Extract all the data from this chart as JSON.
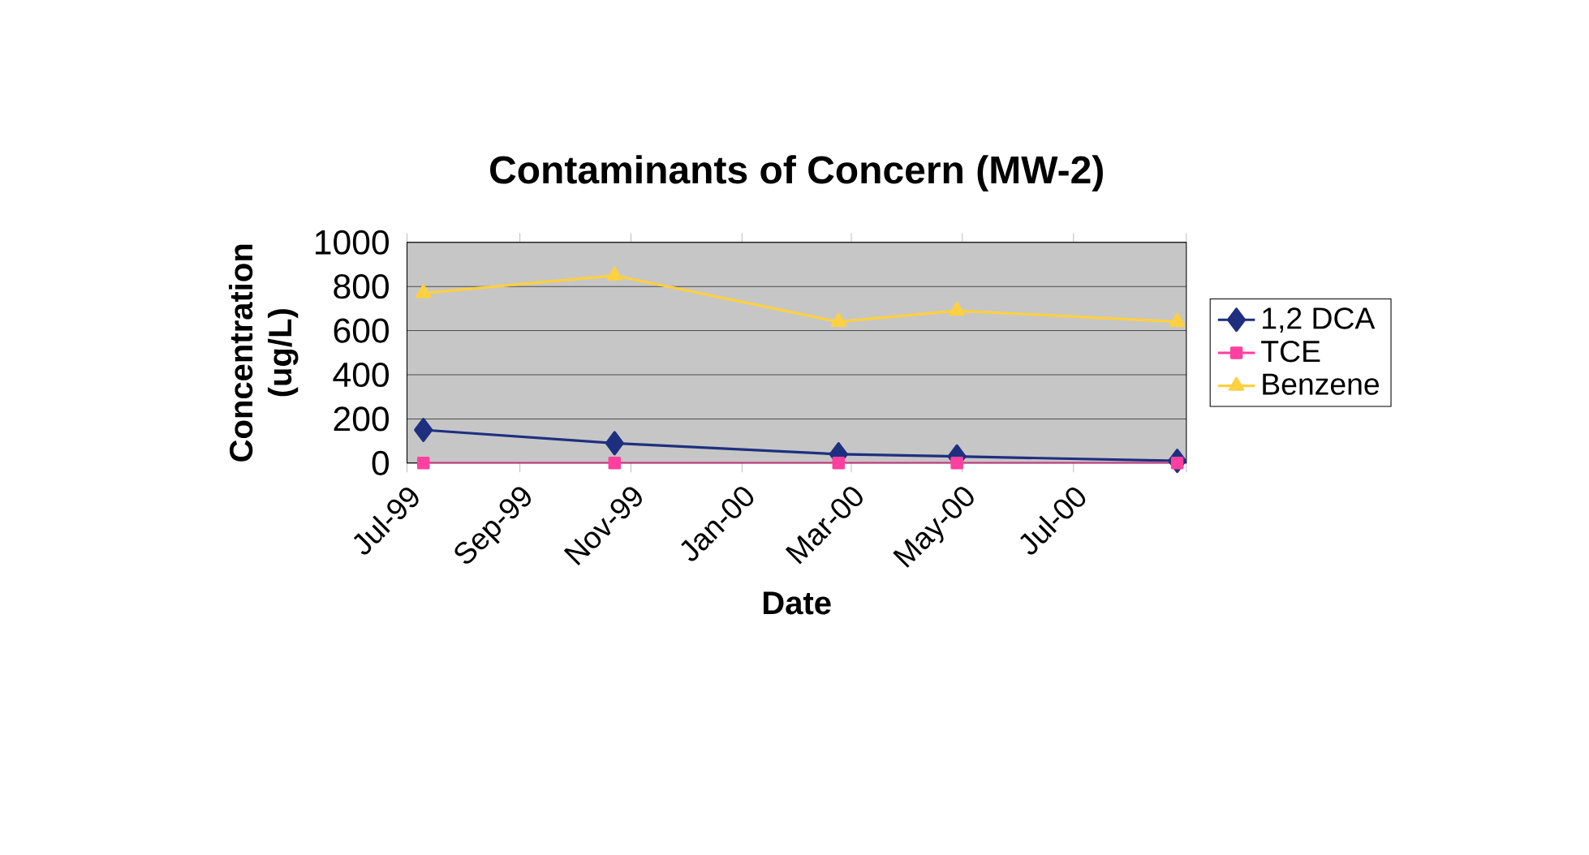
{
  "chart_data": {
    "type": "line",
    "title": "Contaminants of Concern (MW-2)",
    "xlabel": "Date",
    "ylabel": "Concentration (ug/L)",
    "x": [
      "1999-07-10",
      "1999-10-23",
      "2000-02-23",
      "2000-04-28",
      "2000-08-27"
    ],
    "series": [
      {
        "name": "1,2 DCA",
        "color": "#1f2f7f",
        "marker": "diamond",
        "values": [
          150,
          90,
          40,
          30,
          10
        ]
      },
      {
        "name": "TCE",
        "color": "#ff40a0",
        "marker": "square",
        "values": [
          0,
          0,
          0,
          0,
          0
        ]
      },
      {
        "name": "Benzene",
        "color": "#ffd040",
        "marker": "triangle",
        "values": [
          770,
          850,
          640,
          690,
          640
        ]
      }
    ],
    "xlim": [
      "1999-07-01",
      "2000-09-01"
    ],
    "xticks": [
      {
        "value": "1999-07-01",
        "label": "Jul-99"
      },
      {
        "value": "1999-09-01",
        "label": "Sep-99"
      },
      {
        "value": "1999-11-01",
        "label": "Nov-99"
      },
      {
        "value": "2000-01-01",
        "label": "Jan-00"
      },
      {
        "value": "2000-03-01",
        "label": "Mar-00"
      },
      {
        "value": "2000-05-01",
        "label": "May-00"
      },
      {
        "value": "2000-07-01",
        "label": "Jul-00"
      },
      {
        "value": "2000-09-01",
        "label": null
      }
    ],
    "ylim": [
      0,
      1000
    ],
    "yticks": [
      0,
      200,
      400,
      600,
      800,
      1000
    ],
    "grid": "y",
    "legend": "right",
    "line_style": "solid"
  }
}
